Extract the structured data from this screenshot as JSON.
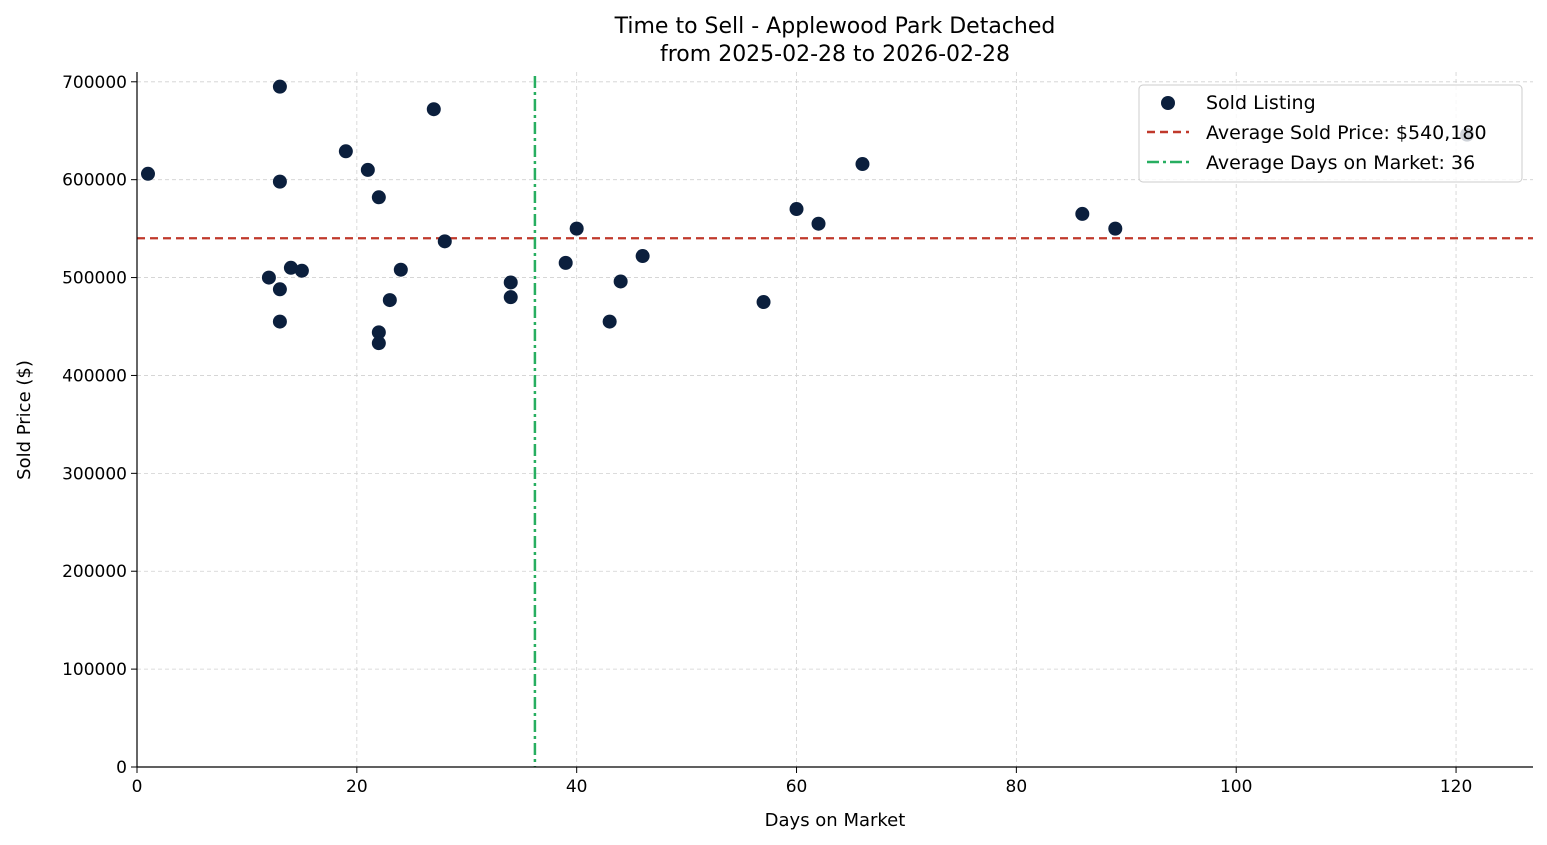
{
  "chart_data": {
    "type": "scatter",
    "title": "Time to Sell - Applewood Park Detached",
    "subtitle": "from 2025-02-28 to 2026-02-28",
    "xlabel": "Days on Market",
    "ylabel": "Sold Price ($)",
    "xlim": [
      0,
      127
    ],
    "ylim": [
      0,
      710000
    ],
    "xticks": [
      0,
      20,
      40,
      60,
      80,
      100,
      120
    ],
    "yticks": [
      0,
      100000,
      200000,
      300000,
      400000,
      500000,
      600000,
      700000
    ],
    "grid": true,
    "legend_position": "top-right",
    "colors": {
      "points": "#0b1f3d",
      "avg_price": "#c0392b",
      "avg_days": "#27ae60"
    },
    "series": [
      {
        "name": "Sold Listing",
        "points": [
          [
            1,
            606000
          ],
          [
            13,
            695000
          ],
          [
            13,
            598000
          ],
          [
            12,
            500000
          ],
          [
            13,
            488000
          ],
          [
            13,
            455000
          ],
          [
            14,
            510000
          ],
          [
            15,
            507000
          ],
          [
            19,
            629000
          ],
          [
            21,
            610000
          ],
          [
            22,
            582000
          ],
          [
            22,
            444000
          ],
          [
            22,
            433000
          ],
          [
            23,
            477000
          ],
          [
            24,
            508000
          ],
          [
            27,
            672000
          ],
          [
            28,
            537000
          ],
          [
            34,
            495000
          ],
          [
            34,
            480000
          ],
          [
            39,
            515000
          ],
          [
            40,
            550000
          ],
          [
            43,
            455000
          ],
          [
            44,
            496000
          ],
          [
            46,
            522000
          ],
          [
            57,
            475000
          ],
          [
            60,
            570000
          ],
          [
            62,
            555000
          ],
          [
            66,
            616000
          ],
          [
            86,
            565000
          ],
          [
            89,
            550000
          ],
          [
            121,
            646000
          ]
        ]
      }
    ],
    "reference_lines": [
      {
        "name": "Average Sold Price: $540,180",
        "orientation": "horizontal",
        "value": 540180,
        "style": "dashed"
      },
      {
        "name": "Average Days on Market: 36",
        "orientation": "vertical",
        "value": 36.2,
        "style": "dashdot"
      }
    ]
  }
}
